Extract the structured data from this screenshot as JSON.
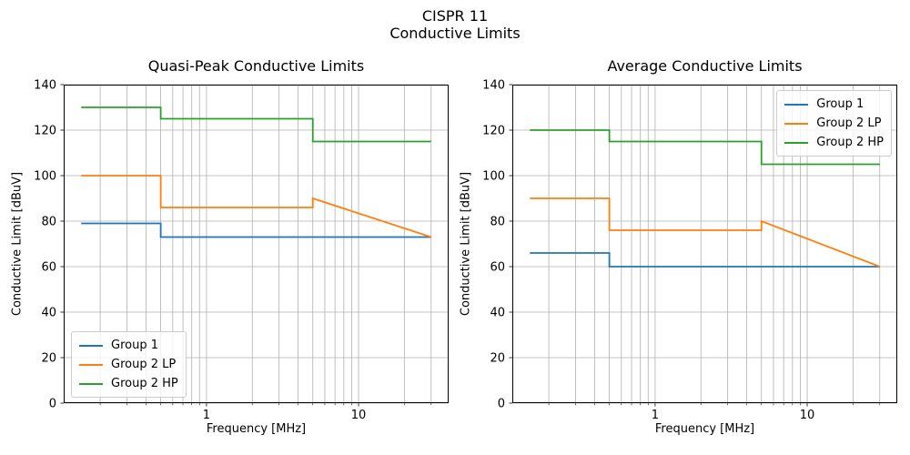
{
  "figure": {
    "suptitle_line1": "CISPR 11",
    "suptitle_line2": "Conductive Limits"
  },
  "colors": {
    "group1": "#1f77b4",
    "group2_lp": "#ff7f0e",
    "group2_hp": "#2ca02c",
    "grid": "#b0b0b0",
    "axis": "#000000",
    "legend_border": "#cccccc"
  },
  "chart_data": [
    {
      "type": "line",
      "title": "Quasi-Peak Conductive Limits",
      "xlabel": "Frequency [MHz]",
      "ylabel": "Conductive Limit [dBuV]",
      "xscale": "log",
      "xlim": [
        0.15,
        30
      ],
      "ylim": [
        0,
        140
      ],
      "yticks": [
        0,
        20,
        40,
        60,
        80,
        100,
        120,
        140
      ],
      "xticks_major": [
        {
          "value": 1,
          "label": "1"
        },
        {
          "value": 10,
          "label": "10"
        }
      ],
      "xticks_minor": [
        0.2,
        0.3,
        0.4,
        0.5,
        0.6,
        0.7,
        0.8,
        0.9,
        2,
        3,
        4,
        5,
        6,
        7,
        8,
        9,
        20,
        30
      ],
      "grid": "both",
      "legend": {
        "position": "lower-left",
        "entries": [
          "Group 1",
          "Group 2 LP",
          "Group 2 HP"
        ]
      },
      "series": [
        {
          "name": "Group 1",
          "color": "#1f77b4",
          "points": [
            [
              0.15,
              79
            ],
            [
              0.5,
              79
            ],
            [
              0.5,
              73
            ],
            [
              30,
              73
            ]
          ]
        },
        {
          "name": "Group 2 LP",
          "color": "#ff7f0e",
          "points": [
            [
              0.15,
              100
            ],
            [
              0.5,
              100
            ],
            [
              0.5,
              86
            ],
            [
              5,
              86
            ],
            [
              5,
              90
            ],
            [
              30,
              73
            ]
          ]
        },
        {
          "name": "Group 2 HP",
          "color": "#2ca02c",
          "points": [
            [
              0.15,
              130
            ],
            [
              0.5,
              130
            ],
            [
              0.5,
              125
            ],
            [
              5,
              125
            ],
            [
              5,
              115
            ],
            [
              30,
              115
            ]
          ]
        }
      ]
    },
    {
      "type": "line",
      "title": "Average Conductive Limits",
      "xlabel": "Frequency [MHz]",
      "ylabel": "Conductive Limit [dBuV]",
      "xscale": "log",
      "xlim": [
        0.15,
        30
      ],
      "ylim": [
        0,
        140
      ],
      "yticks": [
        0,
        20,
        40,
        60,
        80,
        100,
        120,
        140
      ],
      "xticks_major": [
        {
          "value": 1,
          "label": "1"
        },
        {
          "value": 10,
          "label": "10"
        }
      ],
      "xticks_minor": [
        0.2,
        0.3,
        0.4,
        0.5,
        0.6,
        0.7,
        0.8,
        0.9,
        2,
        3,
        4,
        5,
        6,
        7,
        8,
        9,
        20,
        30
      ],
      "grid": "both",
      "legend": {
        "position": "upper-right",
        "entries": [
          "Group 1",
          "Group 2 LP",
          "Group 2 HP"
        ]
      },
      "series": [
        {
          "name": "Group 1",
          "color": "#1f77b4",
          "points": [
            [
              0.15,
              66
            ],
            [
              0.5,
              66
            ],
            [
              0.5,
              60
            ],
            [
              30,
              60
            ]
          ]
        },
        {
          "name": "Group 2 LP",
          "color": "#ff7f0e",
          "points": [
            [
              0.15,
              90
            ],
            [
              0.5,
              90
            ],
            [
              0.5,
              76
            ],
            [
              5,
              76
            ],
            [
              5,
              80
            ],
            [
              30,
              60
            ]
          ]
        },
        {
          "name": "Group 2 HP",
          "color": "#2ca02c",
          "points": [
            [
              0.15,
              120
            ],
            [
              0.5,
              120
            ],
            [
              0.5,
              115
            ],
            [
              5,
              115
            ],
            [
              5,
              105
            ],
            [
              30,
              105
            ]
          ]
        }
      ]
    }
  ]
}
